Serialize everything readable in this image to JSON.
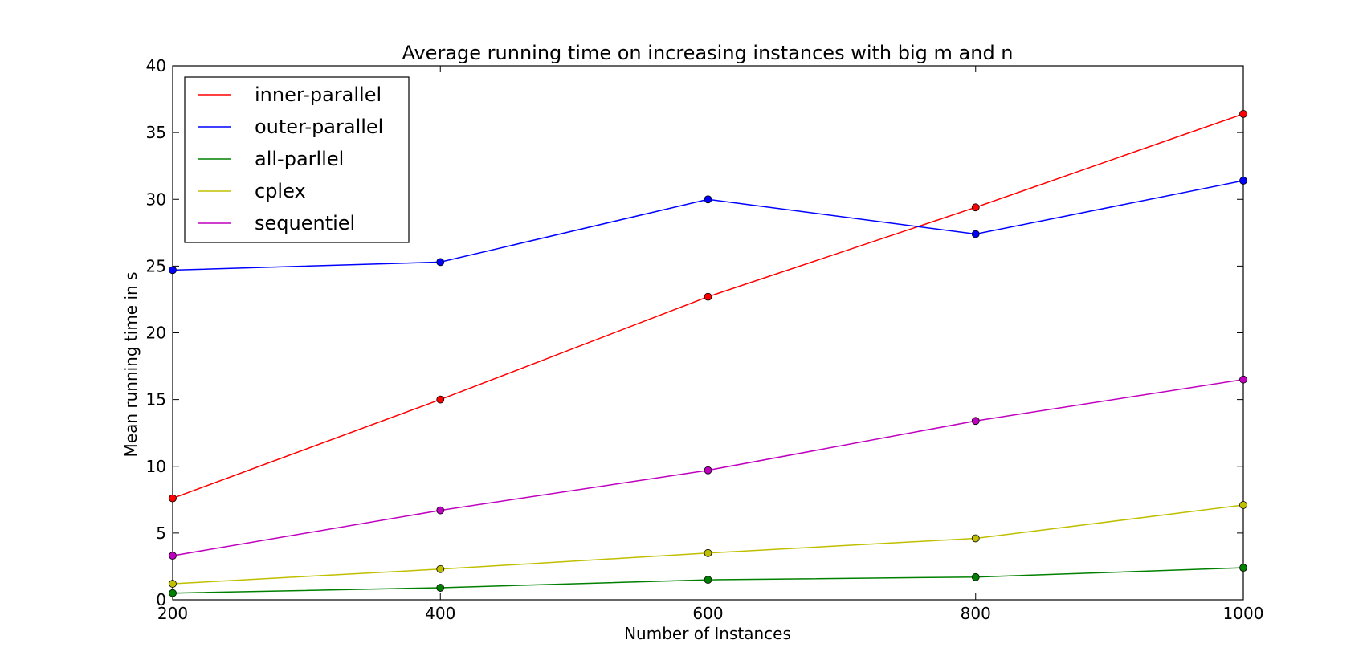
{
  "chart_data": {
    "type": "line",
    "title": "Average running time on increasing instances with big m and n",
    "xlabel": "Number of Instances",
    "ylabel": "Mean running time in s",
    "x": [
      200,
      400,
      600,
      800,
      1000
    ],
    "xlim": [
      200,
      1000
    ],
    "ylim": [
      0,
      40
    ],
    "xticks": [
      "200",
      "400",
      "600",
      "800",
      "1000"
    ],
    "yticks": [
      "0",
      "5",
      "10",
      "15",
      "20",
      "25",
      "30",
      "35",
      "40"
    ],
    "grid": false,
    "legend_position": "upper-left",
    "series": [
      {
        "name": "inner-parallel",
        "color": "#ff0000",
        "values": [
          7.6,
          15.0,
          22.7,
          29.4,
          36.4
        ]
      },
      {
        "name": "outer-parallel",
        "color": "#0000ff",
        "values": [
          24.7,
          25.3,
          30.0,
          27.4,
          31.4
        ]
      },
      {
        "name": "all-parllel",
        "color": "#008000",
        "values": [
          0.5,
          0.9,
          1.5,
          1.7,
          2.4
        ]
      },
      {
        "name": "cplex",
        "color": "#bfbf00",
        "values": [
          1.2,
          2.3,
          3.5,
          4.6,
          7.1
        ]
      },
      {
        "name": "sequentiel",
        "color": "#bf00bf",
        "values": [
          3.3,
          6.7,
          9.7,
          13.4,
          16.5
        ]
      }
    ]
  }
}
